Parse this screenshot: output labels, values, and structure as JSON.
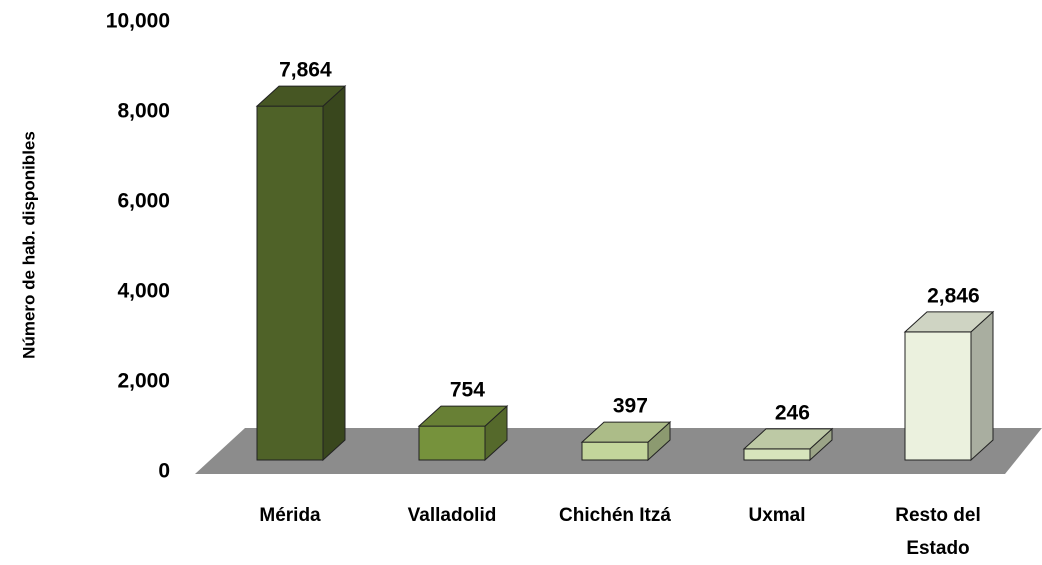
{
  "chart_data": {
    "type": "bar3d",
    "y_label": "Número de hab. disponibles",
    "categories": [
      "Mérida",
      "Valladolid",
      "Chichén Itzá",
      "Uxmal",
      "Resto del Estado"
    ],
    "values": [
      7864,
      754,
      397,
      246,
      2846
    ],
    "value_labels": [
      "7,864",
      "754",
      "397",
      "246",
      "2,846"
    ],
    "colors": [
      "#4f6228",
      "#76923c",
      "#c3d69b",
      "#d7e4bc",
      "#ebf1de"
    ],
    "ylim": [
      0,
      10000
    ],
    "yticks": [
      0,
      {
        "value": 2000,
        "label": "2,000"
      },
      {
        "value": 4000,
        "label": "4,000"
      },
      {
        "value": 6000,
        "label": "6,000"
      },
      {
        "value": 8000,
        "label": "8,000"
      },
      {
        "value": 10000,
        "label": "10,000"
      }
    ]
  }
}
